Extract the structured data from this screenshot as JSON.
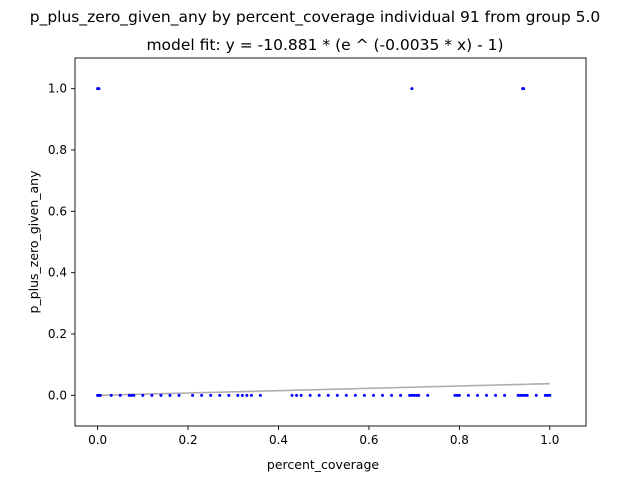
{
  "chart_data": {
    "type": "scatter",
    "title": "p_plus_zero_given_any by percent_coverage individual 91 from group 5.0",
    "subtitle": "model fit: y = -10.881 * (e ^ (-0.0035 * x) - 1)",
    "xlabel": "percent_coverage",
    "ylabel": "p_plus_zero_given_any",
    "xlim": [
      -0.05,
      1.08
    ],
    "ylim": [
      -0.1,
      1.1
    ],
    "xticks": [
      0.0,
      0.2,
      0.4,
      0.6,
      0.8,
      1.0
    ],
    "xtick_labels": [
      "0.0",
      "0.2",
      "0.4",
      "0.6",
      "0.8",
      "1.0"
    ],
    "yticks": [
      0.0,
      0.2,
      0.4,
      0.6,
      0.8,
      1.0
    ],
    "ytick_labels": [
      "0.0",
      "0.2",
      "0.4",
      "0.6",
      "0.8",
      "1.0"
    ],
    "grid": false,
    "point_color": "#0000ff",
    "fit_color": "#b2acac",
    "points": [
      [
        0.0,
        1.0
      ],
      [
        0.003,
        1.0
      ],
      [
        0.695,
        1.0
      ],
      [
        0.94,
        1.0
      ],
      [
        0.942,
        1.0
      ],
      [
        0.0,
        0.0
      ],
      [
        0.003,
        0.0
      ],
      [
        0.006,
        0.0
      ],
      [
        0.03,
        0.0
      ],
      [
        0.05,
        0.0
      ],
      [
        0.07,
        0.0
      ],
      [
        0.075,
        0.0
      ],
      [
        0.08,
        0.0
      ],
      [
        0.1,
        0.0
      ],
      [
        0.12,
        0.0
      ],
      [
        0.14,
        0.0
      ],
      [
        0.16,
        0.0
      ],
      [
        0.18,
        0.0
      ],
      [
        0.21,
        0.0
      ],
      [
        0.23,
        0.0
      ],
      [
        0.25,
        0.0
      ],
      [
        0.27,
        0.0
      ],
      [
        0.29,
        0.0
      ],
      [
        0.31,
        0.0
      ],
      [
        0.32,
        0.0
      ],
      [
        0.33,
        0.0
      ],
      [
        0.34,
        0.0
      ],
      [
        0.36,
        0.0
      ],
      [
        0.43,
        0.0
      ],
      [
        0.44,
        0.0
      ],
      [
        0.45,
        0.0
      ],
      [
        0.47,
        0.0
      ],
      [
        0.49,
        0.0
      ],
      [
        0.51,
        0.0
      ],
      [
        0.53,
        0.0
      ],
      [
        0.55,
        0.0
      ],
      [
        0.57,
        0.0
      ],
      [
        0.59,
        0.0
      ],
      [
        0.61,
        0.0
      ],
      [
        0.63,
        0.0
      ],
      [
        0.65,
        0.0
      ],
      [
        0.67,
        0.0
      ],
      [
        0.69,
        0.0
      ],
      [
        0.695,
        0.0
      ],
      [
        0.7,
        0.0
      ],
      [
        0.705,
        0.0
      ],
      [
        0.71,
        0.0
      ],
      [
        0.73,
        0.0
      ],
      [
        0.79,
        0.0
      ],
      [
        0.795,
        0.0
      ],
      [
        0.8,
        0.0
      ],
      [
        0.82,
        0.0
      ],
      [
        0.84,
        0.0
      ],
      [
        0.86,
        0.0
      ],
      [
        0.88,
        0.0
      ],
      [
        0.9,
        0.0
      ],
      [
        0.93,
        0.0
      ],
      [
        0.935,
        0.0
      ],
      [
        0.94,
        0.0
      ],
      [
        0.945,
        0.0
      ],
      [
        0.95,
        0.0
      ],
      [
        0.97,
        0.0
      ],
      [
        0.99,
        0.0
      ],
      [
        0.995,
        0.0
      ],
      [
        1.0,
        0.0
      ]
    ],
    "fit": {
      "a": -10.881,
      "b": -0.0035
    }
  }
}
